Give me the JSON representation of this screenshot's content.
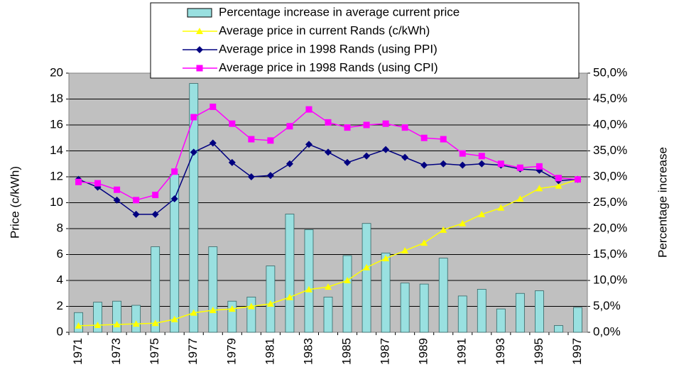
{
  "chart_data": {
    "type": "bar",
    "categories": [
      "1971",
      null,
      "1973",
      null,
      "1975",
      null,
      "1977",
      null,
      "1979",
      null,
      "1981",
      null,
      "1983",
      null,
      "1985",
      null,
      "1987",
      null,
      "1989",
      null,
      "1991",
      null,
      "1993",
      null,
      "1995",
      null,
      "1997"
    ],
    "ylabel": "Price (c/kWh)",
    "y2label": "Percentage increase",
    "ylim": [
      0,
      20
    ],
    "yticks": [
      0,
      2,
      4,
      6,
      8,
      10,
      12,
      14,
      16,
      18,
      20
    ],
    "y2lim": [
      0,
      50
    ],
    "y2ticks": [
      {
        "value": 0,
        "label": "0,0%"
      },
      {
        "value": 5,
        "label": "5,0%"
      },
      {
        "value": 10,
        "label": "10,0%"
      },
      {
        "value": 15,
        "label": "15,0%"
      },
      {
        "value": 20,
        "label": "20,0%"
      },
      {
        "value": 25,
        "label": "25,0%"
      },
      {
        "value": 30,
        "label": "30,0%"
      },
      {
        "value": 35,
        "label": "35,0%"
      },
      {
        "value": 40,
        "label": "40,0%"
      },
      {
        "value": 45,
        "label": "45,0%"
      },
      {
        "value": 50,
        "label": "50,0%"
      }
    ],
    "grid": true,
    "series": [
      {
        "name": "Percentage increase in average current price",
        "type": "bar",
        "axis": "y2",
        "color": "#99e0e0",
        "values": [
          3.8,
          5.8,
          6.0,
          5.2,
          16.5,
          30.5,
          48.0,
          16.5,
          6.0,
          6.8,
          12.8,
          22.8,
          19.8,
          6.8,
          14.8,
          21.0,
          15.3,
          9.5,
          9.3,
          14.3,
          7.0,
          8.3,
          4.5,
          7.5,
          8.0,
          1.3,
          4.8
        ]
      },
      {
        "name": "Average price in current Rands (c/kWh)",
        "type": "line",
        "marker": "triangle",
        "color": "#ffff00",
        "values": [
          0.5,
          0.55,
          0.6,
          0.65,
          0.7,
          1.0,
          1.5,
          1.7,
          1.8,
          2.0,
          2.2,
          2.7,
          3.3,
          3.5,
          4.0,
          5.0,
          5.7,
          6.3,
          6.9,
          7.9,
          8.4,
          9.1,
          9.6,
          10.3,
          11.1,
          11.3,
          11.8
        ]
      },
      {
        "name": "Average price in 1998 Rands (using PPI)",
        "type": "line",
        "marker": "diamond",
        "color": "#000080",
        "values": [
          11.8,
          11.2,
          10.2,
          9.1,
          9.1,
          10.3,
          13.9,
          14.6,
          13.1,
          12.0,
          12.1,
          13.0,
          14.5,
          13.9,
          13.1,
          13.6,
          14.1,
          13.5,
          12.9,
          13.0,
          12.9,
          13.0,
          12.9,
          12.6,
          12.5,
          11.7,
          11.8
        ]
      },
      {
        "name": "Average price in 1998 Rands (using CPI)",
        "type": "line",
        "marker": "square",
        "color": "#ff00ff",
        "values": [
          11.6,
          11.5,
          11.0,
          10.2,
          10.6,
          12.4,
          16.6,
          17.4,
          16.1,
          14.9,
          14.8,
          15.9,
          17.2,
          16.2,
          15.8,
          16.0,
          16.1,
          15.8,
          15.0,
          14.9,
          13.8,
          13.6,
          13.0,
          12.7,
          12.8,
          11.9,
          11.8
        ]
      }
    ]
  }
}
